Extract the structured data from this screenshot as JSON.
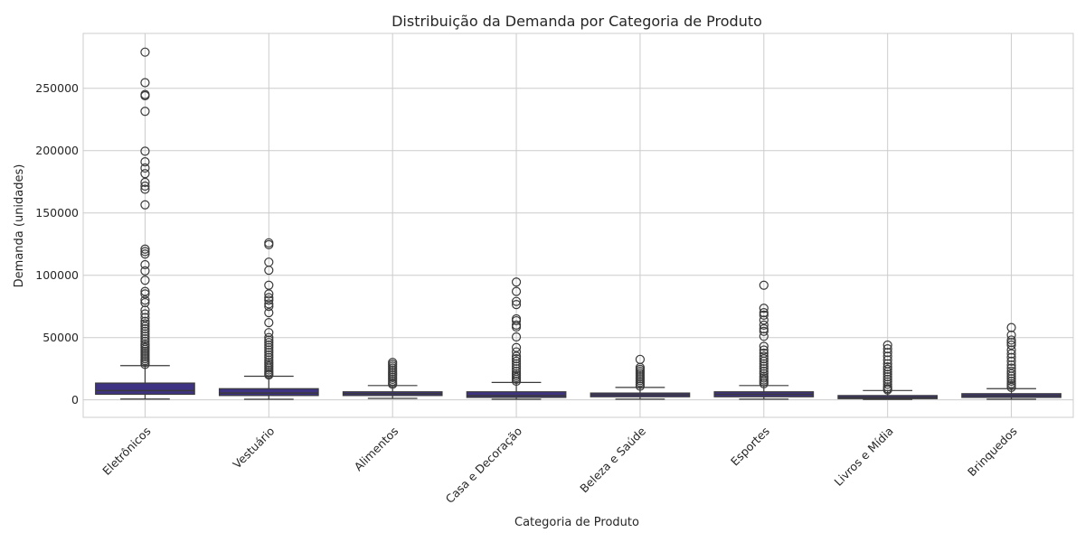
{
  "chart_data": {
    "type": "box",
    "title": "Distribuição da Demanda por Categoria de Produto",
    "xlabel": "Categoria de Produto",
    "ylabel": "Demanda (unidades)",
    "ylim": [
      -14000,
      294000
    ],
    "yticks": [
      0,
      50000,
      100000,
      150000,
      200000,
      250000
    ],
    "ytick_labels": [
      "0",
      "50000",
      "100000",
      "150000",
      "200000",
      "250000"
    ],
    "grid": true,
    "box_color": "#3e3383",
    "categories": [
      "Eletrônicos",
      "Vestuário",
      "Alimentos",
      "Casa e Decoração",
      "Beleza e Saúde",
      "Esportes",
      "Livros e Mídia",
      "Brinquedos"
    ],
    "boxes": [
      {
        "min": 700,
        "q1": 4500,
        "median": 7500,
        "q3": 13500,
        "max": 27500,
        "outliers": [
          279000,
          254500,
          245000,
          244000,
          231500,
          199500,
          191000,
          186000,
          181500,
          174500,
          171500,
          169000,
          156500,
          121000,
          119000,
          117000,
          108500,
          103500,
          96000,
          87000,
          85000,
          80000,
          78000,
          72000,
          69000,
          66000,
          63000,
          61000,
          59000,
          57000,
          55000,
          53000,
          51000,
          49000,
          47000,
          45000,
          43500,
          42000,
          40500,
          39000,
          37500,
          36000,
          34500,
          33000,
          31500,
          30000,
          28500
        ]
      },
      {
        "min": 500,
        "q1": 3500,
        "median": 5500,
        "q3": 9000,
        "max": 19000,
        "outliers": [
          126000,
          124500,
          110500,
          104000,
          92000,
          85000,
          82000,
          80000,
          77000,
          75000,
          70000,
          62000,
          54000,
          50000,
          48000,
          46000,
          44000,
          42000,
          40000,
          38000,
          36000,
          34000,
          32000,
          30000,
          28500,
          27000,
          25500,
          24000,
          22500,
          21000,
          20000
        ]
      },
      {
        "min": 1200,
        "q1": 3500,
        "median": 5000,
        "q3": 6500,
        "max": 11500,
        "outliers": [
          30000,
          28500,
          27000,
          25500,
          24000,
          22500,
          21000,
          19500,
          18000,
          16500,
          15000,
          13500,
          12500
        ]
      },
      {
        "min": 500,
        "q1": 2000,
        "median": 3500,
        "q3": 6500,
        "max": 14000,
        "outliers": [
          94500,
          87000,
          79000,
          76500,
          65000,
          63500,
          60000,
          58500,
          50500,
          42000,
          38500,
          35000,
          33000,
          31000,
          29000,
          27000,
          25000,
          23000,
          21000,
          19500,
          18000,
          16500,
          15000
        ]
      },
      {
        "min": 600,
        "q1": 2500,
        "median": 4000,
        "q3": 5500,
        "max": 10000,
        "outliers": [
          32500,
          26000,
          24500,
          23000,
          21500,
          20000,
          18500,
          17000,
          15500,
          14000,
          12500,
          11000
        ]
      },
      {
        "min": 600,
        "q1": 2500,
        "median": 4500,
        "q3": 6500,
        "max": 11500,
        "outliers": [
          92000,
          73500,
          70000,
          68000,
          64000,
          60000,
          57000,
          55000,
          51000,
          43000,
          40000,
          37500,
          35000,
          33000,
          31000,
          29000,
          27000,
          25000,
          23000,
          21000,
          19000,
          17500,
          16000,
          14500,
          13000
        ]
      },
      {
        "min": 400,
        "q1": 1000,
        "median": 2000,
        "q3": 3500,
        "max": 7500,
        "outliers": [
          44000,
          41000,
          38000,
          35000,
          32000,
          29000,
          26500,
          24500,
          22500,
          20500,
          18500,
          16500,
          14500,
          12500,
          10500,
          9000,
          8000
        ]
      },
      {
        "min": 500,
        "q1": 2000,
        "median": 3500,
        "q3": 5000,
        "max": 9000,
        "outliers": [
          58000,
          52000,
          48000,
          46000,
          44000,
          40000,
          37000,
          34000,
          31000,
          28000,
          25500,
          23000,
          21000,
          19000,
          17000,
          15000,
          13000,
          11500,
          10000
        ]
      }
    ]
  }
}
